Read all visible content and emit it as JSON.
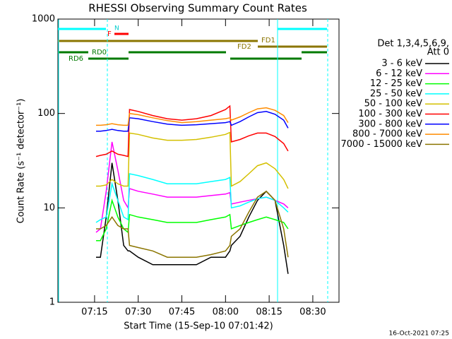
{
  "chart_data": {
    "type": "line",
    "title": "RHESSI Observing Summary Count Rates",
    "xlabel": "Start Time (15-Sep-10 07:01:42)",
    "ylabel": "Count Rate (s⁻¹ detector⁻¹)",
    "footer": "16-Oct-2021 07:25",
    "legend_title": [
      "Det 1,3,4,5,6,9,",
      "Att 0"
    ],
    "log_y": true,
    "xlim": [
      2.4,
      99
    ],
    "xticks": [
      {
        "value": 15,
        "label": "07:15"
      },
      {
        "value": 30,
        "label": "07:30"
      },
      {
        "value": 45,
        "label": "07:45"
      },
      {
        "value": 60,
        "label": "08:00"
      },
      {
        "value": 75,
        "label": "08:15"
      },
      {
        "value": 90,
        "label": "08:30"
      }
    ],
    "ylim": [
      1,
      1000
    ],
    "yticks": [
      1,
      10,
      100,
      1000
    ],
    "annotations": [
      "N",
      "F",
      "FD1",
      "FD2",
      "RD0",
      "RD6"
    ],
    "x": [
      15.5,
      17,
      19,
      21,
      23,
      25,
      26.5,
      27,
      30,
      35,
      40,
      45,
      50,
      55,
      60,
      61.5,
      62,
      65,
      68,
      71,
      74,
      77,
      80,
      81.5
    ],
    "series": [
      {
        "name": "3 - 6 keV",
        "color": "#000000",
        "values": [
          3,
          3,
          8,
          30,
          12,
          4,
          3.5,
          3.5,
          3,
          2.5,
          2.5,
          2.5,
          2.5,
          3,
          3,
          3.5,
          4,
          5,
          8,
          12,
          15,
          12,
          4,
          2
        ]
      },
      {
        "name": "6 - 12 keV",
        "color": "#ff00ff",
        "values": [
          5.5,
          6,
          15,
          50,
          25,
          12,
          10,
          16,
          15,
          14,
          13,
          13,
          13,
          13.5,
          14,
          14.5,
          11,
          11.5,
          12,
          12.5,
          13,
          12,
          11,
          10
        ]
      },
      {
        "name": "12 - 25 keV",
        "color": "#00ff00",
        "values": [
          4.5,
          4.5,
          6,
          12,
          8,
          6,
          5.5,
          8.5,
          8,
          7.5,
          7,
          7,
          7,
          7.5,
          8,
          8.5,
          6,
          6.5,
          7,
          7.5,
          8,
          7.5,
          7,
          6
        ]
      },
      {
        "name": "25 - 50 keV",
        "color": "#00ffff",
        "values": [
          7,
          7.5,
          8,
          18,
          12,
          8,
          7.5,
          23,
          22,
          20,
          18,
          18,
          18,
          19,
          20,
          21,
          10,
          10.5,
          11.5,
          12.5,
          13,
          12,
          10,
          9
        ]
      },
      {
        "name": "50 - 100 keV",
        "color": "#d4c000",
        "values": [
          17,
          17,
          17.5,
          20,
          18,
          17,
          17,
          62,
          60,
          55,
          52,
          52,
          53,
          56,
          60,
          63,
          17,
          19,
          23,
          28,
          30,
          26,
          20,
          16
        ]
      },
      {
        "name": "100 - 300 keV",
        "color": "#ff0000",
        "values": [
          35,
          36,
          37,
          40,
          37,
          36,
          35,
          110,
          105,
          95,
          88,
          85,
          88,
          95,
          110,
          120,
          50,
          53,
          58,
          62,
          62,
          57,
          48,
          40
        ]
      },
      {
        "name": "300 - 800 keV",
        "color": "#0000ff",
        "values": [
          65,
          65,
          66,
          68,
          66,
          65,
          65,
          90,
          88,
          82,
          77,
          75,
          76,
          78,
          80,
          82,
          75,
          82,
          92,
          102,
          105,
          98,
          85,
          70
        ]
      },
      {
        "name": "800 - 7000 keV",
        "color": "#ff8c00",
        "values": [
          75,
          75,
          76,
          78,
          76,
          75,
          75,
          100,
          97,
          90,
          84,
          80,
          82,
          85,
          88,
          90,
          85,
          92,
          102,
          112,
          115,
          108,
          95,
          80
        ]
      },
      {
        "name": "7000 - 15000 keV",
        "color": "#8b7500",
        "values": [
          6,
          6,
          6.5,
          8,
          6.5,
          6,
          6,
          4,
          3.8,
          3.5,
          3,
          3,
          3,
          3.2,
          3.5,
          4,
          5,
          6,
          9,
          13,
          15,
          12,
          6,
          3
        ]
      }
    ]
  }
}
